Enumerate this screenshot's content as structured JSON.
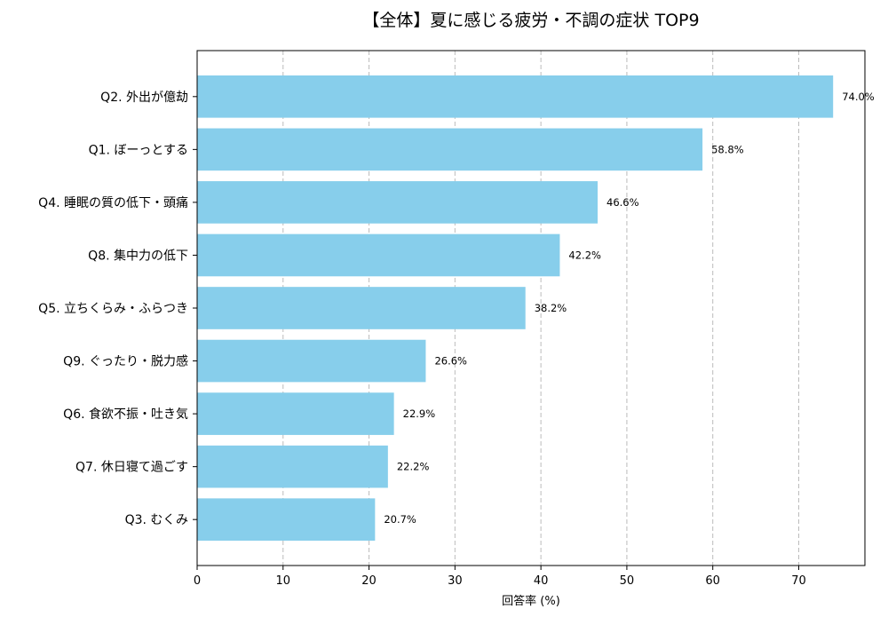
{
  "chart_data": {
    "type": "bar",
    "orientation": "horizontal",
    "title": "【全体】夏に感じる疲労・不調の症状 TOP9",
    "xlabel": "回答率 (%)",
    "ylabel": "",
    "categories": [
      "Q2. 外出が億劫",
      "Q1. ぼーっとする",
      "Q4. 睡眠の質の低下・頭痛",
      "Q8. 集中力の低下",
      "Q5. 立ちくらみ・ふらつき",
      "Q9. ぐったり・脱力感",
      "Q6. 食欲不振・吐き気",
      "Q7. 休日寝て過ごす",
      "Q3. むくみ"
    ],
    "values": [
      74.0,
      58.8,
      46.6,
      42.2,
      38.2,
      26.6,
      22.9,
      22.2,
      20.7
    ],
    "data_labels": [
      "74.0%",
      "58.8%",
      "46.6%",
      "42.2%",
      "38.2%",
      "26.6%",
      "22.9%",
      "22.2%",
      "20.7%"
    ],
    "xticks": [
      0,
      10,
      20,
      30,
      40,
      50,
      60,
      70
    ],
    "xlim": [
      0,
      77.7
    ],
    "grid": "x-dashed",
    "bar_color": "#87CEEB"
  }
}
